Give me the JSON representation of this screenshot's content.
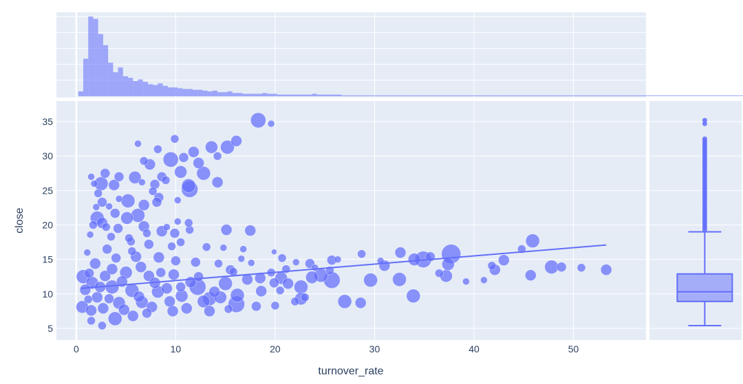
{
  "colors": {
    "background": "#ffffff",
    "plot_bg": "#E5ECF6",
    "grid": "#ffffff",
    "marker": "#636EFA",
    "text": "#2a3f5f"
  },
  "chart_data": [
    {
      "type": "scatter",
      "role": "main",
      "xlabel": "turnover_rate",
      "ylabel": "close",
      "xlim": [
        -2.0,
        57.3
      ],
      "ylim": [
        3.3,
        38.0
      ],
      "xticks": [
        0,
        10,
        20,
        30,
        40,
        50
      ],
      "yticks": [
        5,
        10,
        15,
        20,
        25,
        30,
        35
      ],
      "grid": true,
      "marker_size": "bubble, scaled by a third variable",
      "trendline": {
        "type": "linear",
        "x": [
          0.5,
          53.3
        ],
        "y": [
          10.8,
          17.1
        ]
      },
      "points": [
        [
          18.3,
          35.2,
          11
        ],
        [
          19.6,
          34.7,
          5
        ],
        [
          15.2,
          31.3,
          10
        ],
        [
          16.1,
          32.2,
          8
        ],
        [
          13.6,
          31.3,
          9
        ],
        [
          11.8,
          30.6,
          8
        ],
        [
          9.5,
          29.5,
          11
        ],
        [
          10.8,
          29.8,
          7
        ],
        [
          12.3,
          29.0,
          8
        ],
        [
          8.2,
          31.0,
          6
        ],
        [
          7.4,
          28.8,
          8
        ],
        [
          9.9,
          32.5,
          6
        ],
        [
          6.2,
          31.8,
          5
        ],
        [
          6.8,
          29.3,
          6
        ],
        [
          14.2,
          30.0,
          6
        ],
        [
          8.6,
          27.0,
          7
        ],
        [
          10.5,
          27.7,
          9
        ],
        [
          12.8,
          27.5,
          10
        ],
        [
          14.2,
          26.2,
          8
        ],
        [
          11.3,
          25.7,
          10
        ],
        [
          11.4,
          25.2,
          12
        ],
        [
          5.9,
          26.9,
          9
        ],
        [
          7.9,
          25.9,
          7
        ],
        [
          4.3,
          27.0,
          7
        ],
        [
          3.8,
          25.8,
          8
        ],
        [
          2.5,
          26.0,
          10
        ],
        [
          2.9,
          27.5,
          7
        ],
        [
          1.5,
          27.0,
          5
        ],
        [
          1.8,
          26.0,
          5
        ],
        [
          2.2,
          24.6,
          6
        ],
        [
          2.6,
          23.3,
          7
        ],
        [
          3.3,
          22.7,
          5
        ],
        [
          5.2,
          23.5,
          10
        ],
        [
          6.8,
          22.9,
          8
        ],
        [
          8.3,
          24.0,
          7
        ],
        [
          8.1,
          23.3,
          7
        ],
        [
          9.0,
          26.5,
          6
        ],
        [
          7.7,
          24.9,
          6
        ],
        [
          10.2,
          23.6,
          5
        ],
        [
          6.2,
          21.4,
          10
        ],
        [
          5.1,
          21.0,
          9
        ],
        [
          3.9,
          21.7,
          7
        ],
        [
          2.1,
          21.0,
          10
        ],
        [
          2.6,
          20.3,
          8
        ],
        [
          1.7,
          20.0,
          6
        ],
        [
          4.2,
          19.5,
          7
        ],
        [
          6.8,
          19.8,
          8
        ],
        [
          8.6,
          19.1,
          8
        ],
        [
          9.9,
          18.8,
          7
        ],
        [
          11.4,
          19.3,
          6
        ],
        [
          11.3,
          20.3,
          6
        ],
        [
          15.1,
          19.3,
          8
        ],
        [
          17.5,
          19.2,
          8
        ],
        [
          3.5,
          18.3,
          6
        ],
        [
          5.5,
          17.6,
          6
        ],
        [
          7.3,
          17.2,
          7
        ],
        [
          9.6,
          16.9,
          6
        ],
        [
          10.5,
          17.5,
          6
        ],
        [
          13.1,
          16.8,
          6
        ],
        [
          14.8,
          16.7,
          5
        ],
        [
          16.8,
          16.5,
          5
        ],
        [
          19.9,
          16.1,
          4
        ],
        [
          20.7,
          15.2,
          6
        ],
        [
          22.1,
          14.6,
          5
        ],
        [
          23.5,
          14.4,
          7
        ],
        [
          25.7,
          14.9,
          7
        ],
        [
          28.7,
          15.8,
          6
        ],
        [
          30.6,
          14.8,
          5
        ],
        [
          32.6,
          16.0,
          8
        ],
        [
          34.9,
          15.0,
          12
        ],
        [
          37.7,
          15.8,
          14
        ],
        [
          41.8,
          14.1,
          6
        ],
        [
          43.0,
          14.9,
          8
        ],
        [
          44.8,
          16.5,
          6
        ],
        [
          45.9,
          17.7,
          10
        ],
        [
          45.7,
          12.7,
          8
        ],
        [
          47.8,
          13.9,
          10
        ],
        [
          48.8,
          13.9,
          7
        ],
        [
          50.8,
          13.8,
          6
        ],
        [
          53.3,
          13.5,
          8
        ],
        [
          42.1,
          13.5,
          8
        ],
        [
          41.0,
          12.0,
          5
        ],
        [
          37.2,
          12.6,
          9
        ],
        [
          37.4,
          14.3,
          9
        ],
        [
          34.0,
          15.0,
          9
        ],
        [
          33.9,
          9.7,
          10
        ],
        [
          32.5,
          12.1,
          10
        ],
        [
          31.0,
          14.1,
          8
        ],
        [
          29.6,
          12.0,
          10
        ],
        [
          28.6,
          8.7,
          8
        ],
        [
          27.0,
          8.9,
          10
        ],
        [
          25.7,
          12.0,
          12
        ],
        [
          24.6,
          12.7,
          10
        ],
        [
          23.7,
          12.4,
          9
        ],
        [
          22.6,
          9.3,
          9
        ],
        [
          21.3,
          11.5,
          8
        ],
        [
          22.6,
          11.0,
          10
        ],
        [
          20.6,
          12.3,
          9
        ],
        [
          19.9,
          11.6,
          7
        ],
        [
          18.5,
          12.3,
          8
        ],
        [
          17.2,
          12.1,
          8
        ],
        [
          16.2,
          9.8,
          10
        ],
        [
          16.1,
          8.5,
          12
        ],
        [
          15.0,
          11.5,
          10
        ],
        [
          14.5,
          9.5,
          9
        ],
        [
          13.4,
          9.3,
          10
        ],
        [
          12.2,
          11.0,
          12
        ],
        [
          12.8,
          8.9,
          9
        ],
        [
          13.4,
          7.5,
          8
        ],
        [
          10.6,
          9.7,
          9
        ],
        [
          9.8,
          12.8,
          8
        ],
        [
          9.4,
          8.9,
          8
        ],
        [
          8.2,
          10.3,
          9
        ],
        [
          7.3,
          12.6,
          8
        ],
        [
          6.6,
          8.8,
          9
        ],
        [
          5.6,
          10.5,
          10
        ],
        [
          5.0,
          13.1,
          9
        ],
        [
          4.3,
          8.7,
          9
        ],
        [
          3.6,
          11.0,
          10
        ],
        [
          2.9,
          12.6,
          8
        ],
        [
          2.1,
          9.5,
          8
        ],
        [
          1.6,
          11.6,
          9
        ],
        [
          0.7,
          12.5,
          10
        ],
        [
          0.9,
          10.6,
          8
        ],
        [
          0.6,
          8.1,
          9
        ],
        [
          1.5,
          7.6,
          8
        ],
        [
          2.7,
          7.9,
          8
        ],
        [
          3.9,
          6.4,
          10
        ],
        [
          5.7,
          6.8,
          8
        ],
        [
          7.6,
          8.1,
          8
        ],
        [
          11.1,
          7.9,
          8
        ],
        [
          10.0,
          14.8,
          7
        ],
        [
          8.3,
          15.3,
          8
        ],
        [
          6.0,
          15.4,
          8
        ],
        [
          4.0,
          15.2,
          7
        ],
        [
          1.9,
          14.4,
          8
        ],
        [
          1.5,
          6.1,
          6
        ],
        [
          2.6,
          5.4,
          6
        ],
        [
          19.6,
          13.1,
          6
        ],
        [
          21.1,
          13.6,
          6
        ],
        [
          18.6,
          10.4,
          8
        ],
        [
          15.5,
          13.5,
          7
        ],
        [
          14.3,
          14.4,
          6
        ],
        [
          12.0,
          14.6,
          7
        ],
        [
          12.3,
          12.5,
          7
        ],
        [
          6.5,
          13.9,
          8
        ],
        [
          3.6,
          13.6,
          8
        ],
        [
          1.3,
          13.0,
          7
        ],
        [
          3.3,
          9.3,
          7
        ],
        [
          4.6,
          11.8,
          8
        ],
        [
          7.9,
          11.6,
          8
        ],
        [
          9.1,
          10.8,
          8
        ],
        [
          11.5,
          11.7,
          8
        ],
        [
          6.3,
          9.6,
          8
        ],
        [
          4.8,
          7.7,
          8
        ],
        [
          2.4,
          11.0,
          8
        ],
        [
          1.2,
          9.2,
          6
        ],
        [
          18.1,
          8.2,
          7
        ],
        [
          20.5,
          10.5,
          6
        ],
        [
          7.1,
          7.2,
          7
        ],
        [
          9.7,
          7.5,
          8
        ],
        [
          3.1,
          16.5,
          7
        ],
        [
          5.6,
          16.2,
          6
        ],
        [
          8.5,
          13.1,
          7
        ],
        [
          10.5,
          11.0,
          7
        ],
        [
          13.9,
          10.3,
          8
        ],
        [
          15.8,
          13.2,
          6
        ],
        [
          17.6,
          14.5,
          5
        ],
        [
          16.6,
          15.1,
          5
        ],
        [
          25.5,
          13.4,
          6
        ],
        [
          24.0,
          13.8,
          5
        ],
        [
          26.3,
          15.0,
          5
        ],
        [
          35.6,
          15.4,
          7
        ],
        [
          36.5,
          13.0,
          6
        ],
        [
          39.2,
          11.8,
          5
        ],
        [
          20.0,
          8.3,
          6
        ],
        [
          22.0,
          8.9,
          6
        ],
        [
          23.0,
          9.5,
          6
        ],
        [
          15.3,
          7.8,
          6
        ],
        [
          5.3,
          18.1,
          6
        ],
        [
          7.1,
          18.8,
          6
        ],
        [
          9.1,
          19.7,
          5
        ],
        [
          10.2,
          20.5,
          5
        ],
        [
          4.3,
          23.8,
          5
        ],
        [
          6.6,
          26.2,
          5
        ],
        [
          2.0,
          22.6,
          5
        ],
        [
          3.0,
          19.7,
          6
        ],
        [
          1.1,
          16.0,
          5
        ],
        [
          1.4,
          18.6,
          5
        ]
      ]
    },
    {
      "type": "histogram",
      "role": "marginal-x",
      "xlim": [
        -2.0,
        57.3
      ],
      "bin_start": 0.2,
      "bin_width": 0.5,
      "counts": [
        6,
        47,
        100,
        97,
        78,
        64,
        42,
        30,
        36,
        25,
        23,
        19,
        21,
        18,
        15,
        14,
        16,
        13,
        11,
        11,
        10,
        9,
        9,
        8,
        8,
        7,
        6,
        7,
        5,
        5,
        6,
        4,
        4,
        3,
        3,
        3,
        3,
        4,
        3,
        3,
        2,
        2,
        2,
        2,
        2,
        2,
        2,
        3,
        2,
        2,
        2,
        2,
        2,
        1,
        1,
        1,
        1,
        1,
        1,
        1,
        1,
        1,
        1,
        1,
        1,
        1,
        1,
        1,
        1,
        1,
        1,
        1,
        1,
        1,
        1,
        1,
        1,
        1,
        1,
        1,
        1,
        1,
        1,
        1,
        1,
        1,
        1,
        1,
        1,
        1,
        1,
        1,
        1,
        1,
        1,
        1,
        1,
        1,
        1,
        1,
        1,
        1,
        1,
        1,
        1,
        1,
        1,
        1,
        1,
        1,
        1,
        1,
        1,
        1,
        1,
        1,
        1,
        1,
        1,
        1,
        1,
        1,
        1,
        1,
        1,
        1,
        1,
        1,
        1,
        1,
        1,
        1,
        1,
        1,
        1,
        1,
        1,
        1,
        1,
        1,
        1,
        1,
        1,
        1,
        1,
        1,
        1,
        1,
        1,
        1,
        1,
        1,
        1,
        1,
        1,
        1,
        1,
        1,
        1,
        1,
        1,
        1,
        1,
        1,
        1,
        1,
        1,
        1,
        1,
        1,
        1,
        1,
        1,
        1,
        1,
        1,
        1,
        1,
        1,
        1,
        1,
        1,
        1,
        1,
        1,
        1,
        1,
        1,
        1,
        1,
        1,
        1,
        1,
        1,
        1,
        1,
        1,
        1,
        1,
        1,
        1,
        1,
        1,
        1,
        1,
        1,
        1,
        1,
        1,
        1,
        1,
        1,
        1,
        1,
        1,
        1,
        1,
        1,
        1,
        1
      ]
    },
    {
      "type": "box",
      "role": "marginal-y",
      "ylim": [
        3.3,
        38.0
      ],
      "lower_fence": 5.4,
      "q1": 8.9,
      "median": 10.3,
      "q3": 12.9,
      "upper_fence": 19.0,
      "outliers": [
        19.3,
        19.6,
        19.9,
        20.2,
        20.5,
        20.8,
        21.1,
        21.4,
        21.7,
        22.0,
        22.3,
        22.6,
        22.9,
        23.2,
        23.5,
        23.8,
        24.1,
        24.4,
        24.7,
        25.0,
        25.3,
        25.6,
        25.9,
        26.2,
        26.5,
        26.8,
        27.1,
        27.4,
        27.7,
        28.0,
        28.3,
        28.6,
        28.9,
        29.2,
        29.5,
        29.8,
        30.1,
        30.4,
        30.7,
        31.0,
        31.3,
        31.6,
        31.9,
        32.2,
        32.5,
        34.7,
        35.2
      ]
    }
  ]
}
